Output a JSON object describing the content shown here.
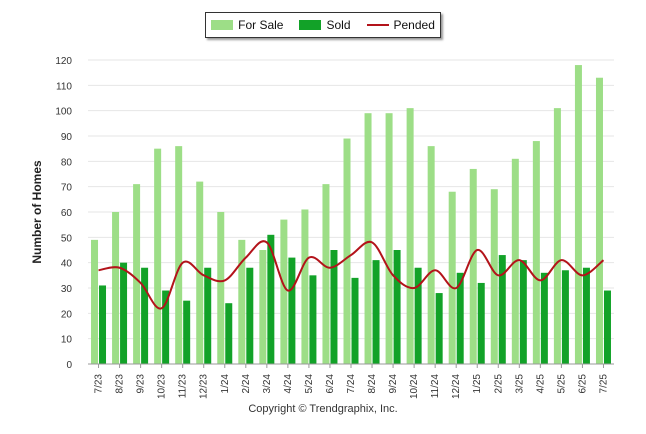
{
  "chart_data": {
    "type": "bar",
    "ylabel": "Number of Homes",
    "xlabel": "",
    "ylim": [
      0,
      120
    ],
    "yticks": [
      0,
      10,
      20,
      30,
      40,
      50,
      60,
      70,
      80,
      90,
      100,
      110,
      120
    ],
    "grid": true,
    "legend_position": "top-center",
    "categories": [
      "7/23",
      "8/23",
      "9/23",
      "10/23",
      "11/23",
      "12/23",
      "1/24",
      "2/24",
      "3/24",
      "4/24",
      "5/24",
      "6/24",
      "7/24",
      "8/24",
      "9/24",
      "10/24",
      "11/24",
      "12/24",
      "1/25",
      "2/25",
      "3/25",
      "4/25",
      "5/25",
      "6/25",
      "7/25"
    ],
    "series": [
      {
        "name": "For Sale",
        "type": "bar",
        "color": "#9dde87",
        "values": [
          49,
          60,
          71,
          85,
          86,
          72,
          60,
          49,
          45,
          57,
          61,
          71,
          89,
          99,
          99,
          101,
          86,
          68,
          77,
          69,
          81,
          88,
          101,
          118,
          113
        ]
      },
      {
        "name": "Sold",
        "type": "bar",
        "color": "#12a228",
        "values": [
          31,
          40,
          38,
          29,
          25,
          38,
          24,
          38,
          51,
          42,
          35,
          45,
          34,
          41,
          45,
          38,
          28,
          36,
          32,
          43,
          41,
          36,
          37,
          38,
          29
        ]
      },
      {
        "name": "Pended",
        "type": "line",
        "color": "#b3131a",
        "values": [
          37,
          38,
          32,
          22,
          40,
          35,
          33,
          42,
          48,
          29,
          42,
          38,
          43,
          48,
          35,
          30,
          37,
          30,
          45,
          35,
          41,
          33,
          41,
          35,
          41
        ]
      }
    ]
  },
  "footer": {
    "copyright": "Copyright © Trendgraphix, Inc."
  }
}
